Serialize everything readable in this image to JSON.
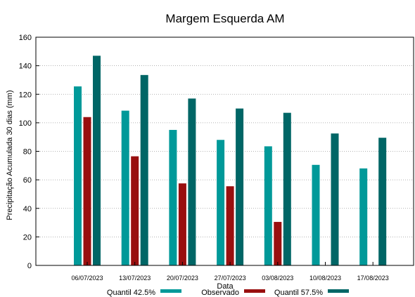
{
  "chart_data": {
    "type": "bar",
    "title": "Margem Esquerda AM",
    "xlabel": "Data",
    "ylabel": "Precipitação Acumulada 30 dias (mm)",
    "ylim": [
      0,
      160
    ],
    "yticks": [
      0,
      20,
      40,
      60,
      80,
      100,
      120,
      140,
      160
    ],
    "grid": true,
    "legend_position": "bottom",
    "categories": [
      "06/07/2023",
      "13/07/2023",
      "20/07/2023",
      "27/07/2023",
      "03/08/2023",
      "10/08/2023",
      "17/08/2023"
    ],
    "series": [
      {
        "name": "Quantil 42.5%",
        "color": "#009999",
        "values": [
          125.5,
          108.5,
          95,
          88,
          83.5,
          70.5,
          68
        ]
      },
      {
        "name": "Observado",
        "color": "#990f0f",
        "values": [
          104,
          76.5,
          57.5,
          55.5,
          30.5,
          null,
          null
        ]
      },
      {
        "name": "Quantil 57.5%",
        "color": "#006666",
        "values": [
          147,
          133.5,
          117,
          110,
          107,
          92.5,
          89.5
        ]
      }
    ]
  }
}
